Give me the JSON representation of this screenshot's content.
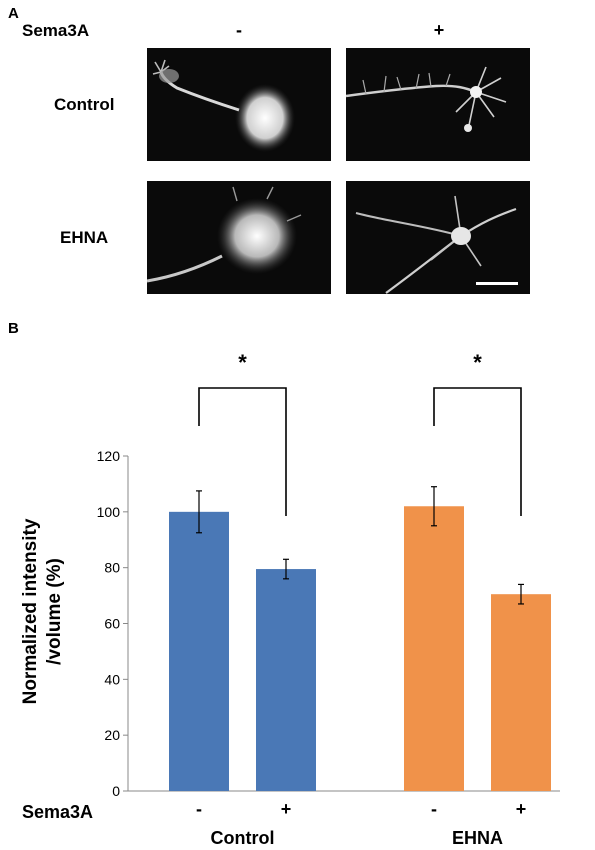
{
  "panel_a": {
    "letter": "A",
    "column_header_label": "Sema3A",
    "columns": [
      "-",
      "+"
    ],
    "rows": [
      "Control",
      "EHNA"
    ]
  },
  "panel_b": {
    "letter": "B"
  },
  "chart_data": {
    "type": "bar",
    "ylabel_lines": [
      "Normalized intensity",
      "/volume (%)"
    ],
    "ylim": [
      0,
      120
    ],
    "yticks": [
      0,
      20,
      40,
      60,
      80,
      100,
      120
    ],
    "grid": false,
    "x_row_label": "Sema3A",
    "groups": [
      {
        "name": "Control",
        "color": "#4a78b6",
        "bars": [
          {
            "category": "-",
            "value": 100,
            "error": 7.5
          },
          {
            "category": "+",
            "value": 79.5,
            "error": 3.5
          }
        ],
        "significance": "*"
      },
      {
        "name": "EHNA",
        "color": "#f0924a",
        "bars": [
          {
            "category": "-",
            "value": 102,
            "error": 7
          },
          {
            "category": "+",
            "value": 70.5,
            "error": 3.5
          }
        ],
        "significance": "*"
      }
    ]
  }
}
